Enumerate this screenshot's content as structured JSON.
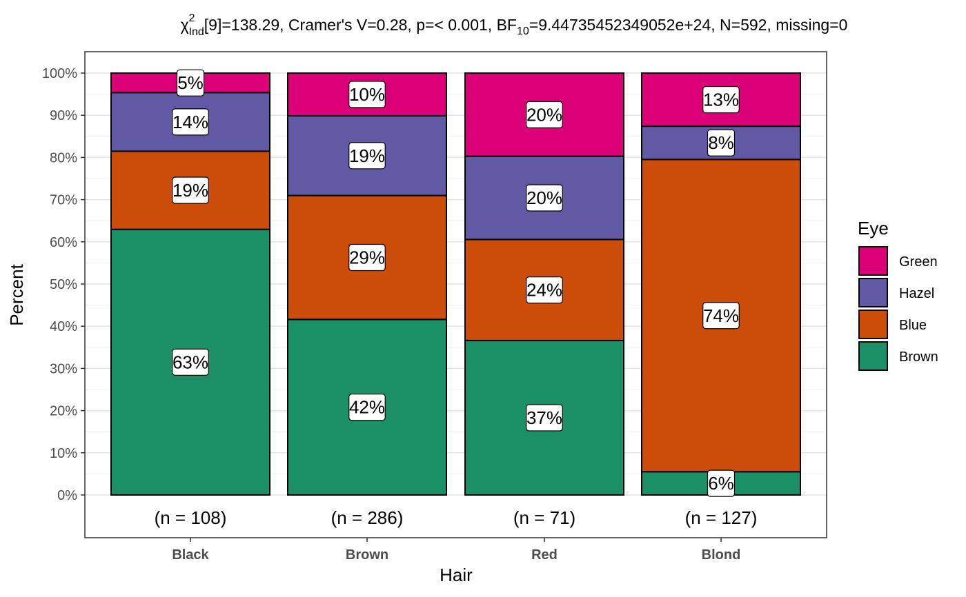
{
  "chart_data": {
    "type": "bar",
    "stacked": true,
    "percent": true,
    "title_parts": {
      "chi": "χ",
      "chi_sup": "2",
      "chi_sub": "Ind",
      "mid": "[9]=138.29, Cramer's V=0.28, p=< 0.001, BF",
      "bf_sub": "10",
      "rest": "=9.44735452349052e+24, N=592, missing=0"
    },
    "xlabel": "Hair",
    "ylabel": "Percent",
    "ylim": [
      0,
      100
    ],
    "yticks": [
      "0%",
      "10%",
      "20%",
      "30%",
      "40%",
      "50%",
      "60%",
      "70%",
      "80%",
      "90%",
      "100%"
    ],
    "categories": [
      "Black",
      "Brown",
      "Red",
      "Blond"
    ],
    "counts": [
      "(n = 108)",
      "(n = 286)",
      "(n = 71)",
      "(n = 127)"
    ],
    "series": [
      {
        "name": "Brown",
        "color": "#1B9066",
        "values": [
          62.96,
          41.61,
          36.62,
          5.51
        ],
        "labels": [
          "63%",
          "42%",
          "37%",
          "6%"
        ]
      },
      {
        "name": "Blue",
        "color": "#CC4C0A",
        "values": [
          18.52,
          29.37,
          23.94,
          74.02
        ],
        "labels": [
          "19%",
          "29%",
          "24%",
          "74%"
        ]
      },
      {
        "name": "Hazel",
        "color": "#6159A3",
        "values": [
          13.89,
          18.88,
          19.72,
          7.87
        ],
        "labels": [
          "14%",
          "19%",
          "20%",
          "8%"
        ]
      },
      {
        "name": "Green",
        "color": "#DC0078",
        "values": [
          4.63,
          10.14,
          19.72,
          12.6
        ],
        "labels": [
          "5%",
          "10%",
          "20%",
          "13%"
        ]
      }
    ],
    "legend": {
      "title": "Eye",
      "position": "right",
      "order": [
        "Green",
        "Hazel",
        "Blue",
        "Brown"
      ]
    },
    "grid": true
  }
}
